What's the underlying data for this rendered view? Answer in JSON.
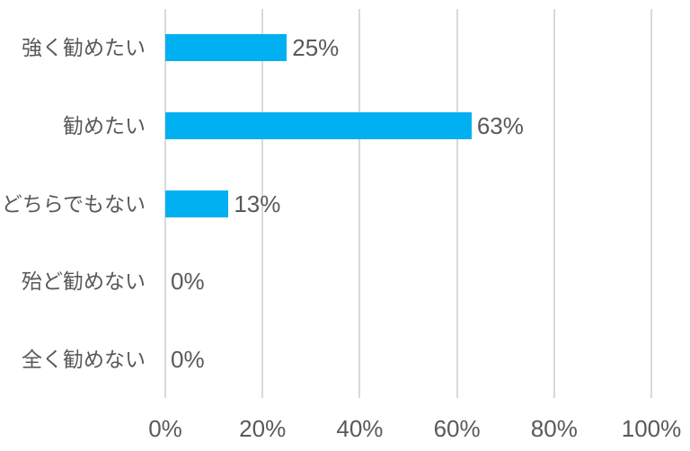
{
  "chart_data": {
    "type": "bar",
    "orientation": "horizontal",
    "categories": [
      "強く勧めたい",
      "勧めたい",
      "どちらでもない",
      "殆ど勧めない",
      "全く勧めない"
    ],
    "values": [
      25,
      63,
      13,
      0,
      0
    ],
    "value_labels": [
      "25%",
      "63%",
      "13%",
      "0%",
      "0%"
    ],
    "x_axis": {
      "min": 0,
      "max": 100,
      "tick_values": [
        0,
        20,
        40,
        60,
        80,
        100
      ],
      "ticks": [
        "0%",
        "20%",
        "40%",
        "60%",
        "80%",
        "100%"
      ]
    },
    "legend": "none",
    "grid": "vertical",
    "colors": {
      "bar": "#00B0F0",
      "gridline": "#D9D9D9",
      "category_text": "#595959",
      "value_text": "#595959",
      "axis_text": "#595959",
      "background": "#FFFFFF"
    }
  }
}
